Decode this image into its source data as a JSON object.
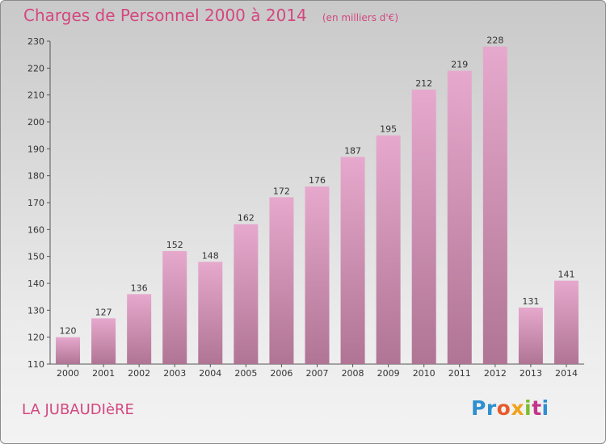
{
  "title": "Charges de Personnel 2000 à 2014",
  "subtitle": "(en milliers d'€)",
  "place": "LA JUBAUDIèRE",
  "logo": {
    "p1": "Pr",
    "p2": "o",
    "p3": "x",
    "p4": "i",
    "p5": "t",
    "p6": "i"
  },
  "colors": {
    "bar_top": "#e6a9cd",
    "bar_bottom": "#b07494",
    "title": "#d4477f"
  },
  "chart_data": {
    "type": "bar",
    "title": "Charges de Personnel 2000 à 2014",
    "subtitle": "(en milliers d'€)",
    "categories": [
      "2000",
      "2001",
      "2002",
      "2003",
      "2004",
      "2005",
      "2006",
      "2007",
      "2008",
      "2009",
      "2010",
      "2011",
      "2012",
      "2013",
      "2014"
    ],
    "values": [
      120,
      127,
      136,
      152,
      148,
      162,
      172,
      176,
      187,
      195,
      212,
      219,
      228,
      131,
      141
    ],
    "ylim": [
      110,
      230
    ],
    "yticks": [
      110,
      120,
      130,
      140,
      150,
      160,
      170,
      180,
      190,
      200,
      210,
      220,
      230
    ],
    "grid": false,
    "legend": "none"
  }
}
